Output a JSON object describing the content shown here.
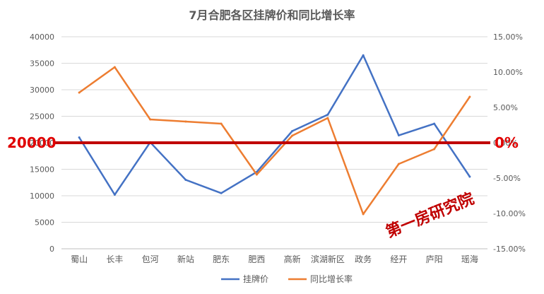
{
  "chart_data": {
    "type": "line",
    "title": "7月合肥各区挂牌价和同比增长率",
    "categories": [
      "蜀山",
      "长丰",
      "包河",
      "新站",
      "肥东",
      "肥西",
      "高新",
      "滨湖新区",
      "政务",
      "经开",
      "庐阳",
      "瑶海"
    ],
    "series": [
      {
        "name": "挂牌价",
        "axis": "left",
        "color": "#4472c4",
        "values": [
          21000,
          10200,
          20100,
          13000,
          10500,
          14500,
          22200,
          25300,
          36500,
          21400,
          23600,
          13600
        ]
      },
      {
        "name": "同比增长率",
        "axis": "right",
        "color": "#ed7d31",
        "values": [
          7.1,
          10.7,
          3.3,
          3.0,
          2.7,
          -4.5,
          1.0,
          3.5,
          -10.1,
          -3.0,
          -0.9,
          6.5
        ]
      }
    ],
    "y_left": {
      "min": 0,
      "max": 40000,
      "ticks": [
        "0",
        "5000",
        "10000",
        "15000",
        "20000",
        "25000",
        "30000",
        "35000",
        "40000"
      ]
    },
    "y_right": {
      "min": -15,
      "max": 15,
      "ticks": [
        "-15.00%",
        "-10.00%",
        "-5.00%",
        "0.00%",
        "5.00%",
        "10.00%",
        "15.00%"
      ]
    },
    "reference_line": {
      "value": 20000,
      "color": "#c00000"
    },
    "annotations": {
      "left": "20000",
      "right": "0%"
    },
    "watermark": "第一房研究院",
    "legend_position": "bottom"
  }
}
